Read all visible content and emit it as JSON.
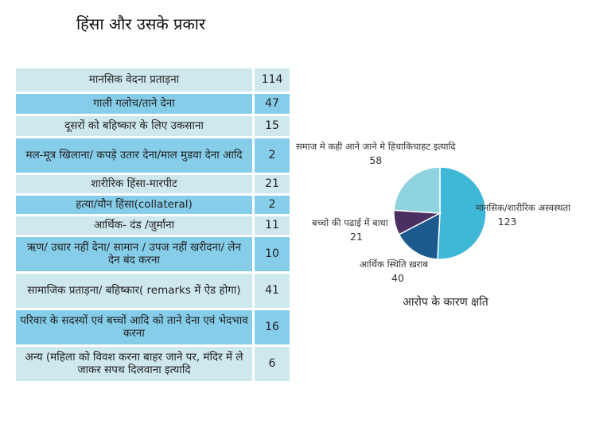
{
  "title": "हिंसा और उसके प्रकार",
  "table": {
    "rows": [
      {
        "label": "मानसिक वेदना प्रताड़ना",
        "value": "114"
      },
      {
        "label": "गाली गलोच/ताने देना",
        "value": "47"
      },
      {
        "label": "दूसरों को बहिष्कार के लिए उकसाना",
        "value": "15"
      },
      {
        "label": "मल-मूत्र खिलाना/ कपड़े उतार देना/माल मुडवा देना आदि",
        "value": "2"
      },
      {
        "label": "शारीरिक हिंसा-मारपीट",
        "value": "21"
      },
      {
        "label": "हत्या/यौन हिंसा(collateral)",
        "value": "2"
      },
      {
        "label": "आर्थिक- दंड /जुर्माना",
        "value": "11"
      },
      {
        "label": "ऋण/ उधार नहीं देना/ सामान / उपज नहीं खरीदना/ लेन देन बंद करना",
        "value": "10"
      },
      {
        "label": "सामाजिक प्रताड़ना/ बहिष्कार( remarks में ऐड होगा)",
        "value": "41"
      },
      {
        "label": "परिवार के सदस्यों एवं बच्चों आदि को ताने देना एवं भेदभाव करना",
        "value": "16"
      },
      {
        "label": "अन्य (महिला को विवश करना बाहर जाने पर, मंदिर में ले जाकर सपथ दिलवाना इत्यादि",
        "value": "6"
      }
    ]
  },
  "chart_data": {
    "type": "pie",
    "title": "आरोप के कारण क्षति",
    "slices": [
      {
        "label": "मानसिक/शारीरिक अस्वस्थता",
        "value": 123,
        "color": "#3fb8d8"
      },
      {
        "label": "आर्थिक स्थिति ख़राब",
        "value": 40,
        "color": "#1c5a8e"
      },
      {
        "label": "बच्चो की पढाई में बाधा",
        "value": 21,
        "color": "#4b2f63"
      },
      {
        "label": "समाज मे कही आने जाने मे हिचाकिचाहट इत्यादि",
        "value": 58,
        "color": "#8ed3dd"
      }
    ]
  }
}
